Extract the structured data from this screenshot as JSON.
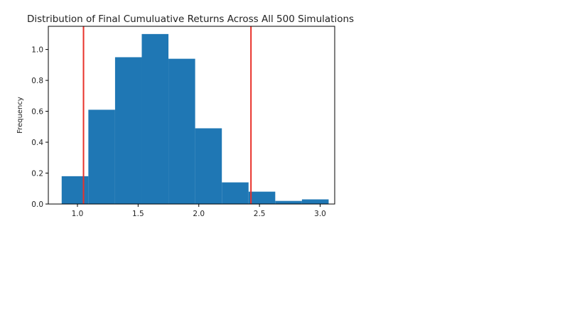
{
  "chart_data": {
    "type": "histogram",
    "title": "Distribution of Final Cumuluative Returns Across All 500 Simulations",
    "xlabel": "",
    "ylabel": "Frequency",
    "xlim": [
      0.76,
      3.12
    ],
    "ylim": [
      0.0,
      1.15
    ],
    "x_ticks": [
      1.0,
      1.5,
      2.0,
      2.5,
      3.0
    ],
    "x_tick_labels": [
      "1.0",
      "1.5",
      "2.0",
      "2.5",
      "3.0"
    ],
    "y_ticks": [
      0.0,
      0.2,
      0.4,
      0.6,
      0.8,
      1.0
    ],
    "y_tick_labels": [
      "0.0",
      "0.2",
      "0.4",
      "0.6",
      "0.8",
      "1.0"
    ],
    "bins": [
      {
        "x0": 0.87,
        "x1": 1.09,
        "value": 0.18
      },
      {
        "x0": 1.09,
        "x1": 1.31,
        "value": 0.61
      },
      {
        "x0": 1.31,
        "x1": 1.53,
        "value": 0.95
      },
      {
        "x0": 1.53,
        "x1": 1.75,
        "value": 1.1
      },
      {
        "x0": 1.75,
        "x1": 1.97,
        "value": 0.94
      },
      {
        "x0": 1.97,
        "x1": 2.19,
        "value": 0.49
      },
      {
        "x0": 2.19,
        "x1": 2.41,
        "value": 0.14
      },
      {
        "x0": 2.41,
        "x1": 2.63,
        "value": 0.08
      },
      {
        "x0": 2.63,
        "x1": 2.85,
        "value": 0.02
      },
      {
        "x0": 2.85,
        "x1": 3.07,
        "value": 0.03
      }
    ],
    "bar_color": "#1f77b4",
    "vertical_lines": [
      {
        "x": 1.05,
        "color": "#e8312a"
      },
      {
        "x": 2.43,
        "color": "#e8312a"
      }
    ],
    "grid": false,
    "legend": false
  }
}
